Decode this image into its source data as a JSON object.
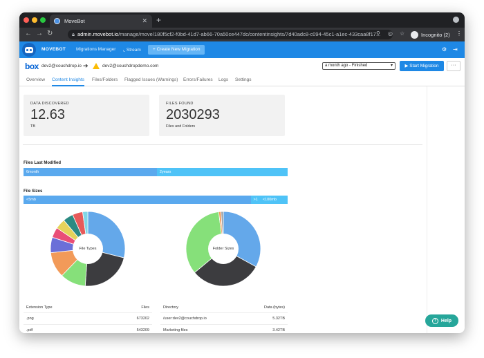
{
  "browser": {
    "tab_title": "MoveBot",
    "url_host": "admin.movebot.io",
    "url_path": "/manage/move/180f5cf2-f0bd-41d7-ab66-70a50ce447dc/contentinsights/7d40adc8-c094-45c1-a1ec-433caa8f17...",
    "profile_label": "Incognito (2)"
  },
  "app": {
    "brand": "MOVEBOT",
    "nav": [
      "Migrations Manager",
      "Stream"
    ],
    "new_migration": "+ Create New Migration"
  },
  "migration": {
    "source_logo": "box",
    "source_account": "dev2@couchdrop.io",
    "dest_account": "dev2@couchdropdemo.com",
    "run_select": "a month ago - Finished",
    "start_button": "▶ Start Migration",
    "more_button": "···"
  },
  "tabs": [
    "Overview",
    "Content Insights",
    "Files/Folders",
    "Flagged Issues (Warnings)",
    "Errors/Failures",
    "Logs",
    "Settings"
  ],
  "active_tab": "Content Insights",
  "stats": {
    "data": {
      "label": "DATA DISCOVERED",
      "value": "12.63",
      "unit": "TB"
    },
    "files": {
      "label": "FILES FOUND",
      "value": "2030293",
      "unit": "Files and Folders"
    }
  },
  "last_modified": {
    "title": "Files Last Modified",
    "segments": [
      {
        "label": "6month",
        "share": 0.505,
        "color": "#5aa9ee"
      },
      {
        "label": "2years",
        "share": 0.495,
        "color": "#4fc3f7"
      }
    ]
  },
  "file_sizes": {
    "title": "File Sizes",
    "segments": [
      {
        "label": "<5mb",
        "share": 0.86,
        "color": "#5aa9ee"
      },
      {
        "label": ">1",
        "share": 0.035,
        "color": "#4fc3f7"
      },
      {
        "label": "<100mb",
        "share": 0.105,
        "color": "#4fc3f7"
      }
    ]
  },
  "file_types_chart": {
    "center_label": "File Types",
    "slices": [
      {
        "value": 26,
        "color": "#64a8ea"
      },
      {
        "value": 20,
        "color": "#3c3c3f"
      },
      {
        "value": 10,
        "color": "#86e07a"
      },
      {
        "value": 10,
        "color": "#f29a59"
      },
      {
        "value": 6,
        "color": "#6b6fd8"
      },
      {
        "value": 4,
        "color": "#e94e77"
      },
      {
        "value": 4,
        "color": "#e4d35a"
      },
      {
        "value": 4,
        "color": "#2b8a82"
      },
      {
        "value": 4,
        "color": "#e65a5a"
      },
      {
        "value": 2,
        "color": "#7fd6e6"
      }
    ]
  },
  "folder_sizes_chart": {
    "center_label": "Folder Sizes",
    "slices": [
      {
        "value": 33,
        "color": "#64a8ea"
      },
      {
        "value": 31,
        "color": "#3c3c3f"
      },
      {
        "value": 34,
        "color": "#86e07a"
      },
      {
        "value": 1,
        "color": "#f29a59"
      },
      {
        "value": 1,
        "color": "#9aa0a6"
      }
    ]
  },
  "ext_table": {
    "headers": [
      "Extension Type",
      "Files"
    ],
    "rows": [
      [
        ".png",
        "673202"
      ],
      [
        ".pdf",
        "543209"
      ]
    ]
  },
  "dir_table": {
    "headers": [
      "Directory",
      "Data (bytes)"
    ],
    "rows": [
      [
        "/user:dev2@couchdrop.io",
        "5.32TB"
      ],
      [
        "Marketing files",
        "3.42TB"
      ]
    ]
  },
  "help_label": "Help"
}
